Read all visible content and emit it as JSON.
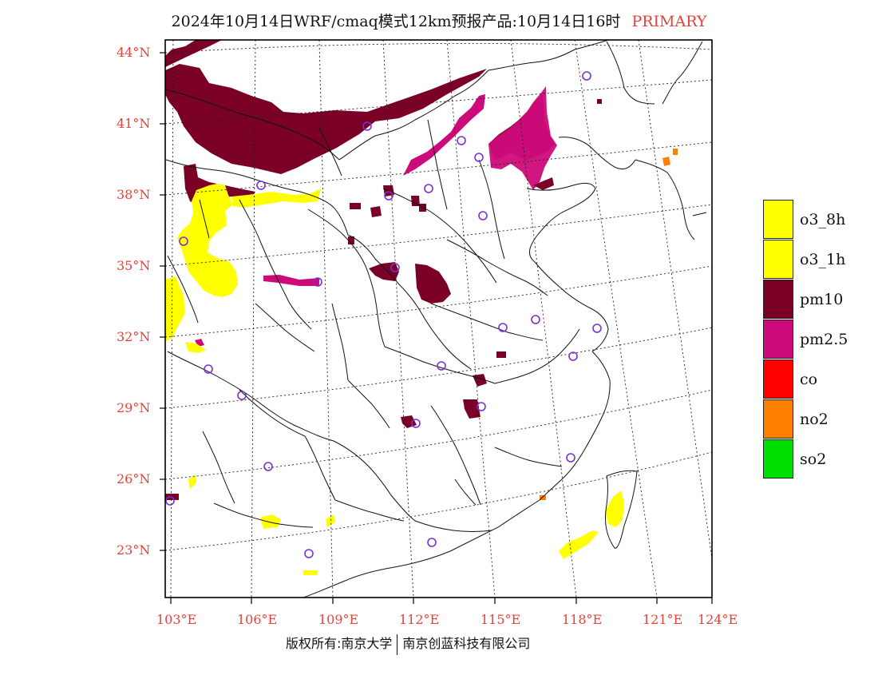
{
  "title": {
    "main": "2024年10月14日WRF/cmaq模式12km预报产品:10月14日16时",
    "tag": "PRIMARY"
  },
  "axes": {
    "lat_labels": [
      "44°N",
      "41°N",
      "38°N",
      "35°N",
      "32°N",
      "29°N",
      "26°N",
      "23°N"
    ],
    "lon_labels": [
      "103°E",
      "106°E",
      "109°E",
      "112°E",
      "115°E",
      "118°E",
      "121°E",
      "124°E"
    ]
  },
  "legend": [
    {
      "label": "o3_8h",
      "color": "#ffff00"
    },
    {
      "label": "o3_1h",
      "color": "#ffff00"
    },
    {
      "label": "pm10",
      "color": "#7a0025"
    },
    {
      "label": "pm2.5",
      "color": "#cc0a7a"
    },
    {
      "label": "co",
      "color": "#ff0000"
    },
    {
      "label": "no2",
      "color": "#ff7f00"
    },
    {
      "label": "so2",
      "color": "#00e000"
    }
  ],
  "colors": {
    "o3": "#ffff00",
    "pm10": "#7a0025",
    "pm25": "#cc0a7a",
    "no2": "#ff7f00",
    "station": "#7b2fd6",
    "label": "#e8413a"
  },
  "copyright": {
    "left": "版权所有:南京大学",
    "right": "南京创蓝科技有限公司"
  }
}
